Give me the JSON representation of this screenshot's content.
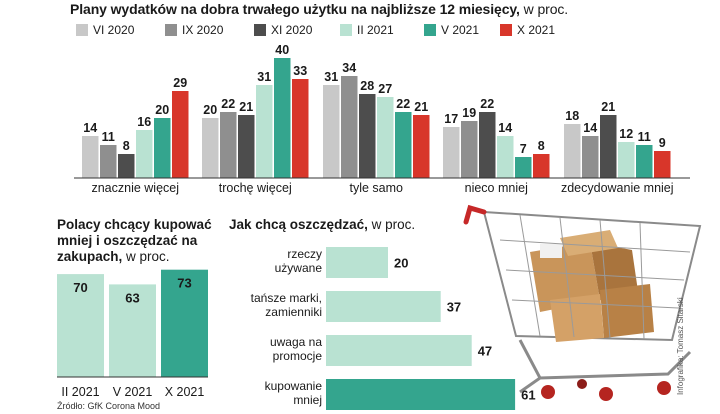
{
  "colors": {
    "VI 2020": "#c8c8c8",
    "IX 2020": "#8f8f8f",
    "XI 2020": "#4d4d4d",
    "II 2021": "#b9e2d2",
    "V 2021": "#34a58e",
    "X 2021": "#d8362a"
  },
  "title_main": "Plany wydatków na dobra trwałego użytku na najbliższe 12 miesięcy,",
  "title_unit": "w proc.",
  "left_title_main": "Polacy chcący kupować mniej i oszczędzać na zakupach,",
  "left_title_unit": "w proc.",
  "right_title_main": "Jak chcą oszczędzać,",
  "right_title_unit": "w proc.",
  "source": "Źródło: GfK Corona Mood",
  "credit": "Infografika: Tomasz Sitarski",
  "chart_data": [
    {
      "type": "bar",
      "title": "Plany wydatków na dobra trwałego użytku na najbliższe 12 miesięcy, w proc.",
      "categories": [
        "znacznie więcej",
        "trochę więcej",
        "tyle samo",
        "nieco mniej",
        "zdecydowanie mniej"
      ],
      "series": [
        {
          "name": "VI 2020",
          "values": [
            14,
            20,
            31,
            17,
            18
          ]
        },
        {
          "name": "IX 2020",
          "values": [
            11,
            22,
            34,
            19,
            14
          ]
        },
        {
          "name": "XI 2020",
          "values": [
            8,
            21,
            28,
            22,
            21
          ]
        },
        {
          "name": "II 2021",
          "values": [
            16,
            31,
            27,
            14,
            12
          ]
        },
        {
          "name": "V 2021",
          "values": [
            20,
            40,
            22,
            7,
            11
          ]
        },
        {
          "name": "X 2021",
          "values": [
            29,
            33,
            21,
            8,
            9
          ]
        }
      ],
      "legend": "top"
    },
    {
      "type": "bar",
      "title": "Polacy chcący kupować mniej i oszczędzać na zakupach, w proc.",
      "categories": [
        "II 2021",
        "V 2021",
        "X 2021"
      ],
      "values": [
        70,
        63,
        73
      ]
    },
    {
      "type": "bar",
      "orientation": "horizontal",
      "title": "Jak chcą oszczędzać, w proc.",
      "categories": [
        "rzeczy używane",
        "tańsze marki, zamienniki",
        "uwaga na promocje",
        "kupowanie mniej"
      ],
      "values": [
        20,
        37,
        47,
        61
      ]
    }
  ]
}
